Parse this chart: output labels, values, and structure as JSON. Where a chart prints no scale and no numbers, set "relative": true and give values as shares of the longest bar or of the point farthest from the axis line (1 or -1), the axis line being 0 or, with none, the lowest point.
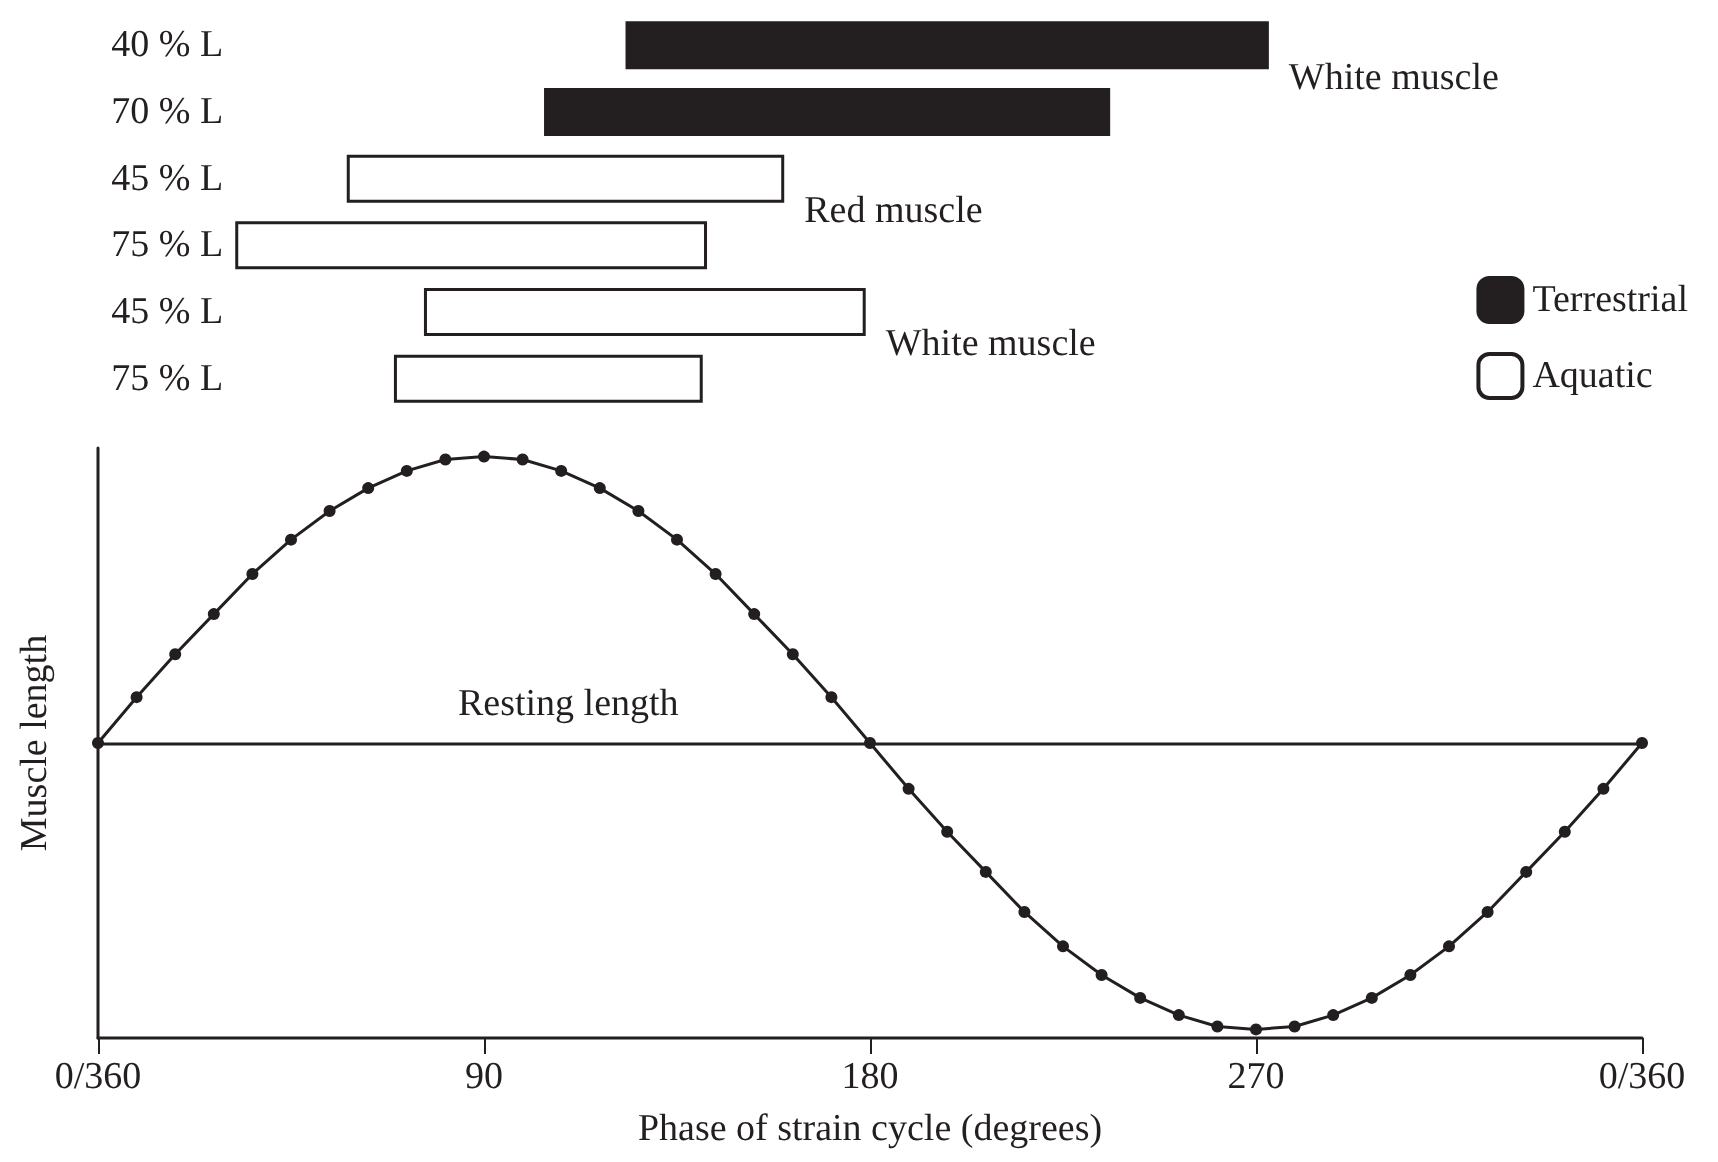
{
  "chart_data": [
    {
      "type": "bar",
      "orientation": "horizontal",
      "categories": [
        "40 % L",
        "70 % L",
        "45 % L",
        "75 % L",
        "45 % L",
        "75 % L"
      ],
      "series": [
        {
          "name": "Terrestrial",
          "color": "#231f20",
          "base": [
            123,
            104,
            null,
            null,
            null,
            null
          ],
          "values": [
            150,
            132,
            null,
            null,
            null,
            null
          ]
        },
        {
          "name": "Aquatic",
          "color": "#ffffff",
          "base": [
            null,
            null,
            58,
            32,
            76,
            69
          ],
          "values": [
            null,
            null,
            102,
            110,
            103,
            72
          ]
        }
      ],
      "xlim": [
        0,
        360
      ],
      "tick_labels": "y",
      "legend": "right",
      "annotations": [
        "White muscle",
        "Red muscle",
        "White muscle"
      ]
    },
    {
      "type": "line",
      "relative": true,
      "xlabel": "Phase of strain cycle (degrees)",
      "ylabel": "Muscle length",
      "x": [
        0,
        9,
        18,
        27,
        36,
        45,
        54,
        63,
        72,
        81,
        90,
        99,
        108,
        117,
        126,
        135,
        144,
        153,
        162,
        171,
        180,
        189,
        198,
        207,
        216,
        225,
        234,
        243,
        252,
        261,
        270,
        279,
        288,
        297,
        306,
        315,
        324,
        333,
        342,
        351,
        360
      ],
      "series": [
        {
          "color": "#231f20",
          "values": [
            0,
            0.16,
            0.31,
            0.45,
            0.59,
            0.71,
            0.81,
            0.89,
            0.95,
            0.99,
            1,
            0.99,
            0.95,
            0.89,
            0.81,
            0.71,
            0.59,
            0.45,
            0.31,
            0.16,
            0,
            -0.16,
            -0.31,
            -0.45,
            -0.59,
            -0.71,
            -0.81,
            -0.89,
            -0.95,
            -0.99,
            -1,
            -0.99,
            -0.95,
            -0.89,
            -0.81,
            -0.71,
            -0.59,
            -0.45,
            -0.31,
            -0.16,
            0
          ]
        }
      ],
      "xlim": [
        0,
        360
      ],
      "xticks": [
        {
          "value": 0,
          "label": "0/360"
        },
        90,
        180,
        270,
        {
          "value": 360,
          "label": "0/360"
        }
      ],
      "tick_labels": "x",
      "marker": "circle",
      "line_style": "solid",
      "ref_lines": [
        {
          "axis": "y",
          "value": 0,
          "label": "Resting length"
        }
      ]
    }
  ]
}
